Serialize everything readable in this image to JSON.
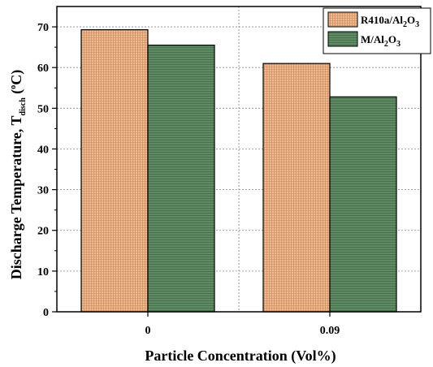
{
  "chart_data": {
    "type": "bar",
    "categories": [
      "0",
      "0.09"
    ],
    "series": [
      {
        "name_main": "R410a/Al",
        "name_sub1": "2",
        "name_mid": "O",
        "name_sub2": "3",
        "values": [
          69.3,
          61.0
        ],
        "color": "#f2b98f",
        "pattern": "#c4865a"
      },
      {
        "name_main": "M/Al",
        "name_sub1": "2",
        "name_mid": "O",
        "name_sub2": "3",
        "values": [
          65.5,
          52.8
        ],
        "color": "#5f8a63",
        "pattern": "#3e6a44"
      }
    ],
    "ylim": [
      0,
      75
    ],
    "yticks": [
      0,
      10,
      20,
      30,
      40,
      50,
      60,
      70
    ],
    "ylabel_main": "Discharge Temperature, T",
    "ylabel_sub": "disch",
    "ylabel_unit_open": " (",
    "ylabel_unit_sup": "o",
    "ylabel_unit_close": "C)",
    "xlabel": "Particle Concentration (Vol%)",
    "grid": true,
    "legend_position": "top-right"
  }
}
